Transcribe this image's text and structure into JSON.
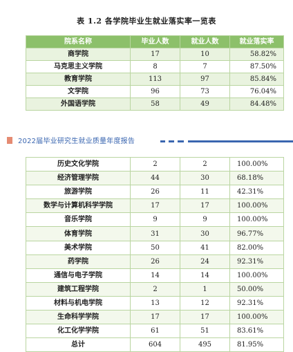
{
  "title": "表 1.2 各学院毕业生就业落实率一览表",
  "table1": {
    "headers": [
      "院系名称",
      "毕业人数",
      "就业人数",
      "就业落实率"
    ],
    "rows": [
      [
        "商学院",
        "17",
        "10",
        "58.82%"
      ],
      [
        "马克思主义学院",
        "8",
        "7",
        "87.50%"
      ],
      [
        "教育学院",
        "113",
        "97",
        "85.84%"
      ],
      [
        "文学院",
        "96",
        "73",
        "76.04%"
      ],
      [
        "外国语学院",
        "58",
        "49",
        "84.48%"
      ]
    ]
  },
  "banner": {
    "text": "2022届毕业研究生就业质量年度报告",
    "accent_color": "#3a66b0",
    "square_color": "#e58b72"
  },
  "table2": {
    "rows": [
      [
        "历史文化学院",
        "2",
        "2",
        "100.00%"
      ],
      [
        "经济管理学院",
        "44",
        "30",
        "68.18%"
      ],
      [
        "旅游学院",
        "26",
        "11",
        "42.31%"
      ],
      [
        "数学与计算机科学学院",
        "17",
        "17",
        "100.00%"
      ],
      [
        "音乐学院",
        "9",
        "9",
        "100.00%"
      ],
      [
        "体育学院",
        "31",
        "30",
        "96.77%"
      ],
      [
        "美术学院",
        "50",
        "41",
        "82.00%"
      ],
      [
        "药学院",
        "26",
        "24",
        "92.31%"
      ],
      [
        "通信与电子学院",
        "14",
        "14",
        "100.00%"
      ],
      [
        "建筑工程学院",
        "2",
        "1",
        "50.00%"
      ],
      [
        "材料与机电学院",
        "13",
        "12",
        "92.31%"
      ],
      [
        "生命科学学院",
        "17",
        "17",
        "100.00%"
      ],
      [
        "化工化学学院",
        "61",
        "51",
        "83.61%"
      ],
      [
        "总计",
        "604",
        "495",
        "81.95%"
      ]
    ]
  },
  "colors": {
    "header_green": "#8cc06a",
    "row_shade": "#e9f3df",
    "border": "#b9d5a0"
  }
}
